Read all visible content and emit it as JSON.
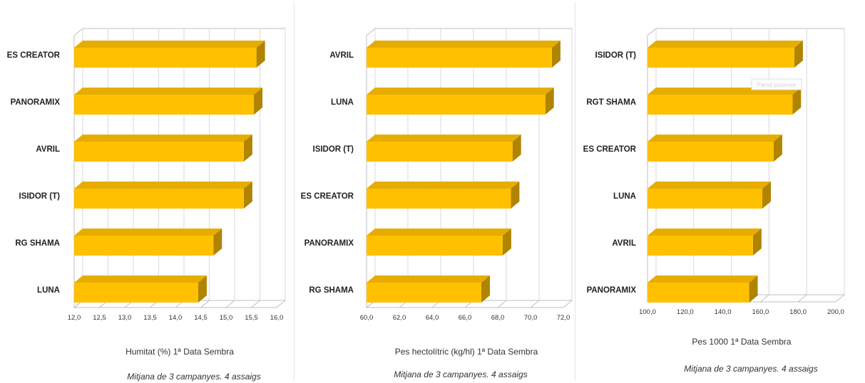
{
  "colors": {
    "bar_front": "#FFC000",
    "bar_top": "#E6AD00",
    "bar_side": "#B08400",
    "grid": "#d9d9d9",
    "frame": "#bfbfbf"
  },
  "chart_data": [
    {
      "type": "bar",
      "orientation": "horizontal",
      "style": "3d",
      "categories": [
        "ES CREATOR",
        "PANORAMIX",
        "AVRIL",
        "ISIDOR (T)",
        "RG SHAMA",
        "LUNA"
      ],
      "values": [
        15.6,
        15.55,
        15.35,
        15.35,
        14.75,
        14.45
      ],
      "xlim": [
        12.0,
        16.0
      ],
      "ticks": [
        "12,0",
        "12,5",
        "13,0",
        "13,5",
        "14,0",
        "14,5",
        "15,0",
        "15,5",
        "16,0"
      ],
      "xlabel": "Humitat (%) 1ª Data Sembra",
      "note": "Mitjana de 3 campanyes. 4 assaigs",
      "grid": true
    },
    {
      "type": "bar",
      "orientation": "horizontal",
      "style": "3d",
      "categories": [
        "AVRIL",
        "LUNA",
        "ISIDOR (T)",
        "ES CREATOR",
        "PANORAMIX",
        "RG SHAMA"
      ],
      "values": [
        71.3,
        70.9,
        68.9,
        68.8,
        68.3,
        67.0
      ],
      "xlim": [
        60.0,
        72.0
      ],
      "ticks": [
        "60,0",
        "62,0",
        "64,0",
        "66,0",
        "68,0",
        "70,0",
        "72,0"
      ],
      "xlabel": "Pes hectolítric (kg/hl) 1ª Data Sembra",
      "note": "Mitjana de 3 campanyes. 4 assaigs",
      "grid": true
    },
    {
      "type": "bar",
      "orientation": "horizontal",
      "style": "3d",
      "categories": [
        "ISIDOR (T)",
        "RGT SHAMA",
        "ES CREATOR",
        "LUNA",
        "AVRIL",
        "PANORAMIX"
      ],
      "values": [
        178,
        177,
        167,
        161,
        156,
        154
      ],
      "xlim": [
        100.0,
        200.0
      ],
      "ticks": [
        "100,0",
        "120,0",
        "140,0",
        "160,0",
        "180,0",
        "200,0"
      ],
      "xlabel": "Pes 1000 1ª Data Sembra",
      "note": "Mitjana de 3 campanyes. 4 assaigs",
      "grid": true
    }
  ],
  "tooltip": {
    "label": "Pared posterior"
  }
}
